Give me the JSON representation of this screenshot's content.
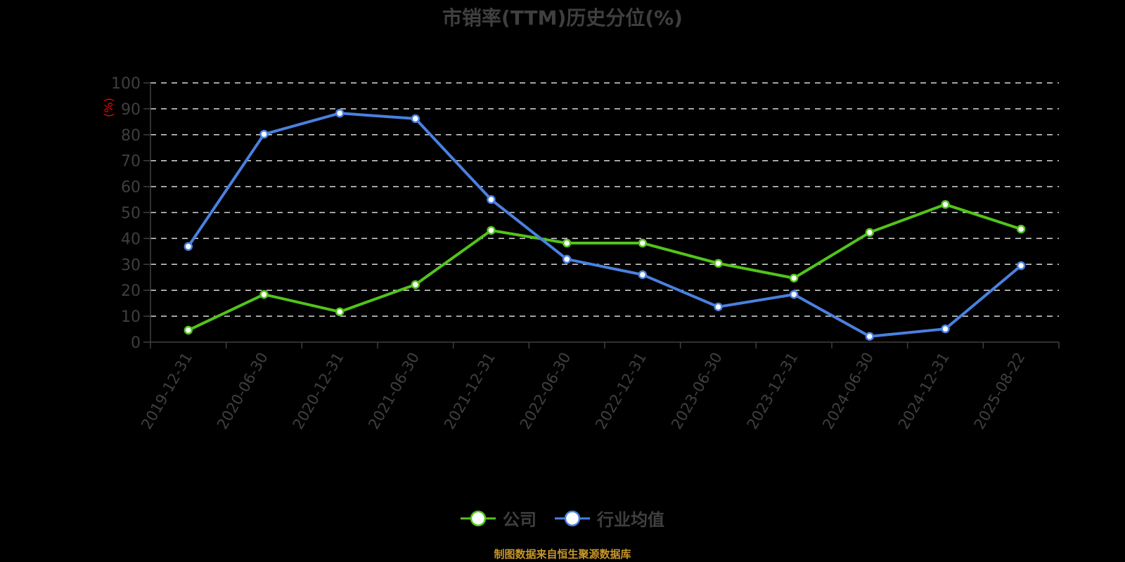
{
  "title": "市销率(TTM)历史分位(%)",
  "y_axis_unit_label": "(%)",
  "legend": {
    "items": [
      {
        "label": "公司",
        "color": "#52c41a"
      },
      {
        "label": "行业均值",
        "color": "#4a80e0"
      }
    ]
  },
  "source_note": "制图数据来自恒生聚源数据库",
  "colors": {
    "background": "#000000",
    "company": "#52c41a",
    "industry": "#4a80e0",
    "axis": "#3f3f3f",
    "grid": "#d9d9d9",
    "unit_label": "#ff0000",
    "source": "#c8962a"
  },
  "chart_data": {
    "type": "line",
    "title": "市销率(TTM)历史分位(%)",
    "xlabel": "",
    "ylabel": "(%)",
    "ylim": [
      0,
      100
    ],
    "yticks": [
      0,
      10,
      20,
      30,
      40,
      50,
      60,
      70,
      80,
      90,
      100
    ],
    "grid": true,
    "grid_style": "dashed",
    "legend_position": "bottom",
    "categories": [
      "2019-12-31",
      "2020-06-30",
      "2020-12-31",
      "2021-06-30",
      "2021-12-31",
      "2022-06-30",
      "2022-12-31",
      "2023-06-30",
      "2023-12-31",
      "2024-06-30",
      "2024-12-31",
      "2025-08-22"
    ],
    "series": [
      {
        "name": "公司",
        "color": "#52c41a",
        "values": [
          4.6,
          18.4,
          11.7,
          22.2,
          43.1,
          38.2,
          38.2,
          30.4,
          24.7,
          42.3,
          53.1,
          43.6
        ]
      },
      {
        "name": "行业均值",
        "color": "#4a80e0",
        "values": [
          36.9,
          80.2,
          88.3,
          86.2,
          55.0,
          32.0,
          26.0,
          13.6,
          18.4,
          2.2,
          5.1,
          29.5
        ]
      }
    ]
  }
}
